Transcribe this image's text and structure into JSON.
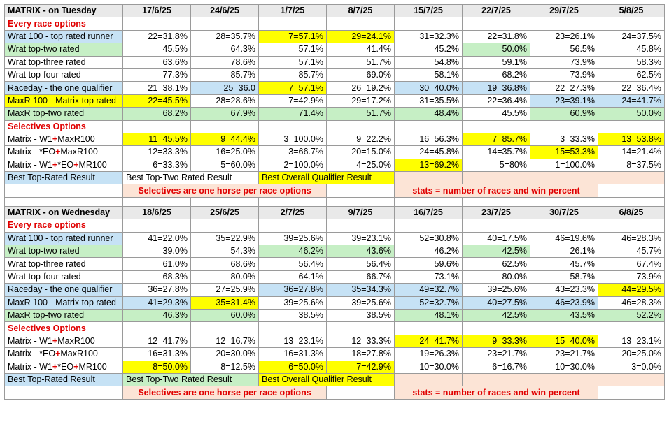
{
  "tuesday": {
    "title": "MATRIX - on Tuesday",
    "dates": [
      "17/6/25",
      "24/6/25",
      "1/7/25",
      "8/7/25",
      "15/7/25",
      "22/7/25",
      "29/7/25",
      "5/8/25"
    ],
    "section_every": "Every race options",
    "section_selectives": "Selectives Options",
    "every_rows": [
      {
        "label": "Wrat 100 - top rated runner",
        "label_bg": "blue",
        "cells": [
          {
            "v": "22=31.8%"
          },
          {
            "v": "28=35.7%"
          },
          {
            "v": "7=57.1%",
            "bg": "yellow"
          },
          {
            "v": "29=24.1%",
            "bg": "yellow"
          },
          {
            "v": "31=32.3%"
          },
          {
            "v": "22=31.8%"
          },
          {
            "v": "23=26.1%"
          },
          {
            "v": "24=37.5%"
          }
        ]
      },
      {
        "label": "Wrat top-two rated",
        "label_bg": "green",
        "cells": [
          {
            "v": "45.5%"
          },
          {
            "v": "64.3%"
          },
          {
            "v": "57.1%"
          },
          {
            "v": "41.4%"
          },
          {
            "v": "45.2%"
          },
          {
            "v": "50.0%",
            "bg": "green"
          },
          {
            "v": "56.5%"
          },
          {
            "v": "45.8%"
          }
        ]
      },
      {
        "label": "Wrat top-three rated",
        "label_bg": "",
        "cells": [
          {
            "v": "63.6%"
          },
          {
            "v": "78.6%"
          },
          {
            "v": "57.1%"
          },
          {
            "v": "51.7%"
          },
          {
            "v": "54.8%"
          },
          {
            "v": "59.1%"
          },
          {
            "v": "73.9%"
          },
          {
            "v": "58.3%"
          }
        ]
      },
      {
        "label": "Wrat top-four rated",
        "label_bg": "",
        "cells": [
          {
            "v": "77.3%"
          },
          {
            "v": "85.7%"
          },
          {
            "v": "85.7%"
          },
          {
            "v": "69.0%"
          },
          {
            "v": "58.1%"
          },
          {
            "v": "68.2%"
          },
          {
            "v": "73.9%"
          },
          {
            "v": "62.5%"
          }
        ]
      },
      {
        "label": "Raceday - the one qualifier",
        "label_bg": "blue",
        "cells": [
          {
            "v": "21=38.1%"
          },
          {
            "v": "25=36.0",
            "bg": "blue"
          },
          {
            "v": "7=57.1%",
            "bg": "yellow"
          },
          {
            "v": "26=19.2%"
          },
          {
            "v": "30=40.0%",
            "bg": "blue"
          },
          {
            "v": "19=36.8%",
            "bg": "blue"
          },
          {
            "v": "22=27.3%"
          },
          {
            "v": "22=36.4%"
          }
        ]
      },
      {
        "label": "MaxR 100 - Matrix top rated",
        "label_bg": "yellow",
        "cells": [
          {
            "v": "22=45.5%",
            "bg": "yellow"
          },
          {
            "v": "28=28.6%"
          },
          {
            "v": "7=42.9%"
          },
          {
            "v": "29=17.2%"
          },
          {
            "v": "31=35.5%"
          },
          {
            "v": "22=36.4%"
          },
          {
            "v": "23=39.1%",
            "bg": "blue"
          },
          {
            "v": "24=41.7%",
            "bg": "blue"
          }
        ]
      },
      {
        "label": "MaxR top-two rated",
        "label_bg": "green",
        "cells": [
          {
            "v": "68.2%",
            "bg": "green"
          },
          {
            "v": "67.9%",
            "bg": "green"
          },
          {
            "v": "71.4%",
            "bg": "green"
          },
          {
            "v": "51.7%",
            "bg": "green"
          },
          {
            "v": "48.4%",
            "bg": "green"
          },
          {
            "v": "45.5%"
          },
          {
            "v": "60.9%",
            "bg": "green"
          },
          {
            "v": "50.0%",
            "bg": "green"
          }
        ]
      }
    ],
    "selective_rows": [
      {
        "parts": [
          "Matrix - W1",
          "+",
          "MaxR100"
        ],
        "cells": [
          {
            "v": "11=45.5%",
            "bg": "yellow"
          },
          {
            "v": "9=44.4%",
            "bg": "yellow"
          },
          {
            "v": "3=100.0%"
          },
          {
            "v": "9=22.2%"
          },
          {
            "v": "16=56.3%"
          },
          {
            "v": "7=85.7%",
            "bg": "yellow"
          },
          {
            "v": "3=33.3%"
          },
          {
            "v": "13=53.8%",
            "bg": "yellow"
          }
        ]
      },
      {
        "parts": [
          "Matrix - *EO",
          "+",
          "MaxR100"
        ],
        "cells": [
          {
            "v": "12=33.3%"
          },
          {
            "v": "16=25.0%"
          },
          {
            "v": "3=66.7%"
          },
          {
            "v": "20=15.0%"
          },
          {
            "v": "24=45.8%"
          },
          {
            "v": "14=35.7%"
          },
          {
            "v": "15=53.3%",
            "bg": "yellow"
          },
          {
            "v": "14=21.4%"
          }
        ]
      },
      {
        "parts": [
          "Matrix - W1",
          "+",
          "*EO",
          "+",
          "MR100"
        ],
        "cells": [
          {
            "v": "6=33.3%"
          },
          {
            "v": "5=60.0%"
          },
          {
            "v": "2=100.0%"
          },
          {
            "v": "4=25.0%"
          },
          {
            "v": "13=69.2%",
            "bg": "yellow"
          },
          {
            "v": "5=80%"
          },
          {
            "v": "1=100.0%"
          },
          {
            "v": "8=37.5%"
          }
        ]
      }
    ],
    "legend": {
      "top_rated": "Best Top-Rated Result",
      "top_two": "Best Top-Two Rated Result",
      "overall": "Best Overall Qualifier Result"
    },
    "notes": {
      "selectives": "Selectives are one horse per race options",
      "stats": "stats = number of races and win percent"
    }
  },
  "wednesday": {
    "title": "MATRIX - on Wednesday",
    "dates": [
      "18/6/25",
      "25/6/25",
      "2/7/25",
      "9/7/25",
      "16/7/25",
      "23/7/25",
      "30/7/25",
      "6/8/25"
    ],
    "section_every": "Every race options",
    "section_selectives": "Selectives Options",
    "every_rows": [
      {
        "label": "Wrat 100 - top rated runner",
        "label_bg": "blue",
        "cells": [
          {
            "v": "41=22.0%"
          },
          {
            "v": "35=22.9%"
          },
          {
            "v": "39=25.6%"
          },
          {
            "v": "39=23.1%"
          },
          {
            "v": "52=30.8%"
          },
          {
            "v": "40=17.5%"
          },
          {
            "v": "46=19.6%"
          },
          {
            "v": "46=28.3%"
          }
        ]
      },
      {
        "label": "Wrat top-two rated",
        "label_bg": "green",
        "cells": [
          {
            "v": "39.0%"
          },
          {
            "v": "54.3%"
          },
          {
            "v": "46.2%",
            "bg": "green"
          },
          {
            "v": "43.6%",
            "bg": "green"
          },
          {
            "v": "46.2%"
          },
          {
            "v": "42.5%",
            "bg": "green"
          },
          {
            "v": "26.1%"
          },
          {
            "v": "45.7%"
          }
        ]
      },
      {
        "label": "Wrat top-three rated",
        "label_bg": "",
        "cells": [
          {
            "v": "61.0%"
          },
          {
            "v": "68.6%"
          },
          {
            "v": "56.4%"
          },
          {
            "v": "56.4%"
          },
          {
            "v": "59.6%"
          },
          {
            "v": "62.5%"
          },
          {
            "v": "45.7%"
          },
          {
            "v": "67.4%"
          }
        ]
      },
      {
        "label": "Wrat top-four rated",
        "label_bg": "",
        "cells": [
          {
            "v": "68.3%"
          },
          {
            "v": "80.0%"
          },
          {
            "v": "64.1%"
          },
          {
            "v": "66.7%"
          },
          {
            "v": "73.1%"
          },
          {
            "v": "80.0%"
          },
          {
            "v": "58.7%"
          },
          {
            "v": "73.9%"
          }
        ]
      },
      {
        "label": "Raceday - the one qualifier",
        "label_bg": "blue",
        "cells": [
          {
            "v": "36=27.8%"
          },
          {
            "v": "27=25.9%"
          },
          {
            "v": "36=27.8%",
            "bg": "blue"
          },
          {
            "v": "35=34.3%",
            "bg": "blue"
          },
          {
            "v": "49=32.7%",
            "bg": "blue"
          },
          {
            "v": "39=25.6%"
          },
          {
            "v": "43=23.3%"
          },
          {
            "v": "44=29.5%",
            "bg": "yellow"
          }
        ]
      },
      {
        "label": "MaxR 100 - Matrix top rated",
        "label_bg": "blue",
        "cells": [
          {
            "v": "41=29.3%",
            "bg": "blue"
          },
          {
            "v": "35=31.4%",
            "bg": "yellow"
          },
          {
            "v": "39=25.6%"
          },
          {
            "v": "39=25.6%"
          },
          {
            "v": "52=32.7%",
            "bg": "blue"
          },
          {
            "v": "40=27.5%",
            "bg": "blue"
          },
          {
            "v": "46=23.9%",
            "bg": "blue"
          },
          {
            "v": "46=28.3%"
          }
        ]
      },
      {
        "label": "MaxR top-two rated",
        "label_bg": "green",
        "cells": [
          {
            "v": "46.3%",
            "bg": "green"
          },
          {
            "v": "60.0%",
            "bg": "green"
          },
          {
            "v": "38.5%"
          },
          {
            "v": "38.5%"
          },
          {
            "v": "48.1%",
            "bg": "green"
          },
          {
            "v": "42.5%",
            "bg": "green"
          },
          {
            "v": "43.5%",
            "bg": "green"
          },
          {
            "v": "52.2%",
            "bg": "green"
          }
        ]
      }
    ],
    "selective_rows": [
      {
        "parts": [
          "Matrix - W1",
          "+",
          "MaxR100"
        ],
        "cells": [
          {
            "v": "12=41.7%"
          },
          {
            "v": "12=16.7%"
          },
          {
            "v": "13=23.1%"
          },
          {
            "v": "12=33.3%"
          },
          {
            "v": "24=41.7%",
            "bg": "yellow"
          },
          {
            "v": "9=33.3%",
            "bg": "yellow"
          },
          {
            "v": "15=40.0%",
            "bg": "yellow"
          },
          {
            "v": "13=23.1%"
          }
        ]
      },
      {
        "parts": [
          "Matrix - *EO",
          "+",
          "MaxR100"
        ],
        "cells": [
          {
            "v": "16=31.3%"
          },
          {
            "v": "20=30.0%"
          },
          {
            "v": "16=31.3%"
          },
          {
            "v": "18=27.8%"
          },
          {
            "v": "19=26.3%"
          },
          {
            "v": "23=21.7%"
          },
          {
            "v": "23=21.7%"
          },
          {
            "v": "20=25.0%"
          }
        ]
      },
      {
        "parts": [
          "Matrix - W1",
          "+",
          "*EO",
          "+",
          "MR100"
        ],
        "cells": [
          {
            "v": "8=50.0%",
            "bg": "yellow"
          },
          {
            "v": "8=12.5%"
          },
          {
            "v": "6=50.0%",
            "bg": "yellow"
          },
          {
            "v": "7=42.9%",
            "bg": "yellow"
          },
          {
            "v": "10=30.0%"
          },
          {
            "v": "6=16.7%"
          },
          {
            "v": "10=30.0%"
          },
          {
            "v": "3=0.0%"
          }
        ]
      }
    ],
    "legend": {
      "top_rated": "Best Top-Rated Result",
      "top_two": "Best Top-Two Rated Result",
      "overall": "Best Overall Qualifier Result"
    },
    "notes": {
      "selectives": "Selectives are one horse per race options",
      "stats": "stats = number of races and win percent"
    }
  },
  "colors": {
    "red_text": "#e00000",
    "blue": "#c6e2f5",
    "green": "#c6efc5",
    "yellow": "#ffff00",
    "pink": "#fce4d6",
    "header_gray": "#e9e9e9"
  }
}
